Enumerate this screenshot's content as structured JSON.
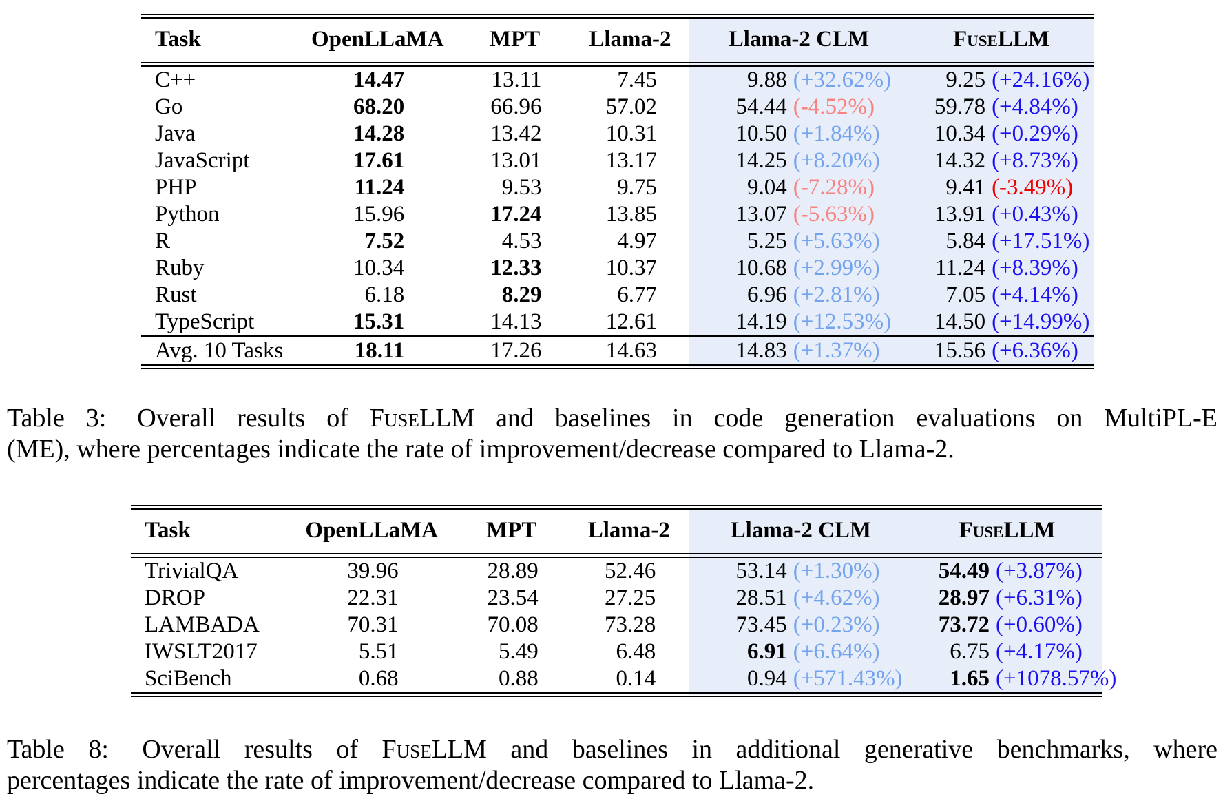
{
  "colors": {
    "background": "#FFFFFF",
    "text": "#000000",
    "highlight_bg": "#E8EEF9",
    "pct_light_pos": "#74A3EE",
    "pct_light_neg": "#F8827F",
    "pct_dark_pos": "#1A10F0",
    "pct_dark_neg": "#EE0000"
  },
  "table3": {
    "headers": [
      {
        "label": "Task"
      },
      {
        "label": "OpenLLaMA"
      },
      {
        "label": "MPT"
      },
      {
        "label": "Llama-2"
      },
      {
        "label": "Llama-2 CLM"
      },
      {
        "label": "FuseLLM",
        "smallcaps": true
      }
    ],
    "rows": [
      {
        "task": "C++",
        "cells": [
          {
            "v": "14.47",
            "bold": true
          },
          {
            "v": "13.11"
          },
          {
            "v": "7.45"
          },
          {
            "v": "9.88",
            "pct": "(+32.62%)",
            "neg": false
          },
          {
            "v": "9.25",
            "pct": "(+24.16%)",
            "neg": false
          }
        ]
      },
      {
        "task": "Go",
        "cells": [
          {
            "v": "68.20",
            "bold": true
          },
          {
            "v": "66.96"
          },
          {
            "v": "57.02"
          },
          {
            "v": "54.44",
            "pct": "(-4.52%)",
            "neg": true
          },
          {
            "v": "59.78",
            "pct": "(+4.84%)",
            "neg": false
          }
        ]
      },
      {
        "task": "Java",
        "cells": [
          {
            "v": "14.28",
            "bold": true
          },
          {
            "v": "13.42"
          },
          {
            "v": "10.31"
          },
          {
            "v": "10.50",
            "pct": "(+1.84%)",
            "neg": false
          },
          {
            "v": "10.34",
            "pct": "(+0.29%)",
            "neg": false
          }
        ]
      },
      {
        "task": "JavaScript",
        "cells": [
          {
            "v": "17.61",
            "bold": true
          },
          {
            "v": "13.01"
          },
          {
            "v": "13.17"
          },
          {
            "v": "14.25",
            "pct": "(+8.20%)",
            "neg": false
          },
          {
            "v": "14.32",
            "pct": "(+8.73%)",
            "neg": false
          }
        ]
      },
      {
        "task": "PHP",
        "cells": [
          {
            "v": "11.24",
            "bold": true
          },
          {
            "v": "9.53"
          },
          {
            "v": "9.75"
          },
          {
            "v": "9.04",
            "pct": "(-7.28%)",
            "neg": true
          },
          {
            "v": "9.41",
            "pct": "(-3.49%)",
            "neg": true
          }
        ]
      },
      {
        "task": "Python",
        "cells": [
          {
            "v": "15.96"
          },
          {
            "v": "17.24",
            "bold": true
          },
          {
            "v": "13.85"
          },
          {
            "v": "13.07",
            "pct": "(-5.63%)",
            "neg": true
          },
          {
            "v": "13.91",
            "pct": "(+0.43%)",
            "neg": false
          }
        ]
      },
      {
        "task": "R",
        "cells": [
          {
            "v": "7.52",
            "bold": true
          },
          {
            "v": "4.53"
          },
          {
            "v": "4.97"
          },
          {
            "v": "5.25",
            "pct": "(+5.63%)",
            "neg": false
          },
          {
            "v": "5.84",
            "pct": "(+17.51%)",
            "neg": false
          }
        ]
      },
      {
        "task": "Ruby",
        "cells": [
          {
            "v": "10.34"
          },
          {
            "v": "12.33",
            "bold": true
          },
          {
            "v": "10.37"
          },
          {
            "v": "10.68",
            "pct": "(+2.99%)",
            "neg": false
          },
          {
            "v": "11.24",
            "pct": "(+8.39%)",
            "neg": false
          }
        ]
      },
      {
        "task": "Rust",
        "cells": [
          {
            "v": "6.18"
          },
          {
            "v": "8.29",
            "bold": true
          },
          {
            "v": "6.77"
          },
          {
            "v": "6.96",
            "pct": "(+2.81%)",
            "neg": false
          },
          {
            "v": "7.05",
            "pct": "(+4.14%)",
            "neg": false
          }
        ]
      },
      {
        "task": "TypeScript",
        "cells": [
          {
            "v": "15.31",
            "bold": true
          },
          {
            "v": "14.13"
          },
          {
            "v": "12.61"
          },
          {
            "v": "14.19",
            "pct": "(+12.53%)",
            "neg": false
          },
          {
            "v": "14.50",
            "pct": "(+14.99%)",
            "neg": false
          }
        ]
      }
    ],
    "footer": {
      "task": "Avg. 10 Tasks",
      "cells": [
        {
          "v": "18.11",
          "bold": true
        },
        {
          "v": "17.26"
        },
        {
          "v": "14.63"
        },
        {
          "v": "14.83",
          "pct": "(+1.37%)",
          "neg": false
        },
        {
          "v": "15.56",
          "pct": "(+6.36%)",
          "neg": false
        }
      ]
    },
    "caption": {
      "label": "Table 3:",
      "line1_pre": " Overall results of ",
      "brand": "FuseLLM",
      "line1_post": " and baselines in code generation evaluations on MultiPL-E",
      "line2": "(ME), where percentages indicate the rate of improvement/decrease compared to Llama-2."
    }
  },
  "table8": {
    "headers": [
      {
        "label": "Task"
      },
      {
        "label": "OpenLLaMA"
      },
      {
        "label": "MPT"
      },
      {
        "label": "Llama-2"
      },
      {
        "label": "Llama-2 CLM"
      },
      {
        "label": "FuseLLM",
        "smallcaps": true
      }
    ],
    "rows": [
      {
        "task": "TrivialQA",
        "cells": [
          {
            "v": "39.96"
          },
          {
            "v": "28.89"
          },
          {
            "v": "52.46"
          },
          {
            "v": "53.14",
            "pct": "(+1.30%)",
            "neg": false
          },
          {
            "v": "54.49",
            "bold": true,
            "pct": "(+3.87%)",
            "neg": false
          }
        ]
      },
      {
        "task": "DROP",
        "cells": [
          {
            "v": "22.31"
          },
          {
            "v": "23.54"
          },
          {
            "v": "27.25"
          },
          {
            "v": "28.51",
            "pct": "(+4.62%)",
            "neg": false
          },
          {
            "v": "28.97",
            "bold": true,
            "pct": "(+6.31%)",
            "neg": false
          }
        ]
      },
      {
        "task": "LAMBADA",
        "cells": [
          {
            "v": "70.31"
          },
          {
            "v": "70.08"
          },
          {
            "v": "73.28"
          },
          {
            "v": "73.45",
            "pct": "(+0.23%)",
            "neg": false
          },
          {
            "v": "73.72",
            "bold": true,
            "pct": "(+0.60%)",
            "neg": false
          }
        ]
      },
      {
        "task": "IWSLT2017",
        "cells": [
          {
            "v": "5.51"
          },
          {
            "v": "5.49"
          },
          {
            "v": "6.48"
          },
          {
            "v": "6.91",
            "bold": true,
            "pct": "(+6.64%)",
            "neg": false
          },
          {
            "v": "6.75",
            "pct": "(+4.17%)",
            "neg": false
          }
        ]
      },
      {
        "task": "SciBench",
        "cells": [
          {
            "v": "0.68"
          },
          {
            "v": "0.88"
          },
          {
            "v": "0.14"
          },
          {
            "v": "0.94",
            "pct": "(+571.43%)",
            "neg": false
          },
          {
            "v": "1.65",
            "bold": true,
            "pct": "(+1078.57%)",
            "neg": false
          }
        ]
      }
    ],
    "caption": {
      "label": "Table 8:",
      "line1_pre": " Overall results of ",
      "brand": "FuseLLM",
      "line1_post": " and baselines in additional generative benchmarks, where",
      "line2": "percentages indicate the rate of improvement/decrease compared to Llama-2."
    }
  }
}
